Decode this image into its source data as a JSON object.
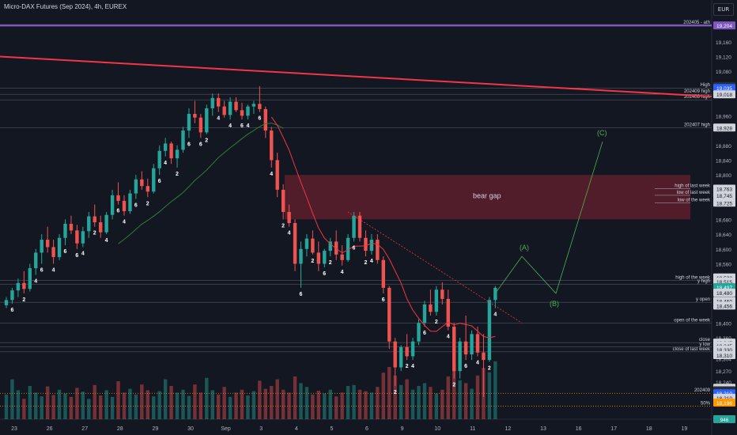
{
  "header": {
    "title": "Micro-DAX Futures (Sep 2024), 4h, EUREX",
    "currency": "EUR"
  },
  "colors": {
    "background": "#131722",
    "bull": "#26a69a",
    "bear": "#ef5350",
    "ath_line": "#7e57c2",
    "trendline": "#f23645",
    "bear_gap": "#5d1f2b",
    "projection": "#4caf50",
    "ma_fast": "#f23645",
    "ma_slow": "#2e7d32",
    "dotted_level": "#ff9800"
  },
  "price_axis": {
    "ticks": [
      "19,160",
      "19,120",
      "19,080",
      "18,960",
      "18,880",
      "18,840",
      "18,800",
      "18,680",
      "18,640",
      "18,600",
      "18,560",
      "18,400",
      "18,360",
      "18,304",
      "18,270",
      "18,240"
    ],
    "badges": [
      {
        "text": "19,204",
        "price": 19204,
        "color": "#7e57c2"
      },
      {
        "text": "High",
        "price": 19040,
        "color": "#2a2e39"
      },
      {
        "text": "19,035",
        "price": 19035,
        "color": "#2962ff"
      },
      {
        "text": "19,018",
        "price": 19018,
        "color": "#d1d4dc"
      },
      {
        "text": "18,928",
        "price": 18928,
        "color": "#d1d4dc"
      },
      {
        "text": "18,763",
        "price": 18763,
        "color": "#d1d4dc"
      },
      {
        "text": "18,745",
        "price": 18745,
        "color": "#d1d4dc"
      },
      {
        "text": "18,725",
        "price": 18725,
        "color": "#d1d4dc"
      },
      {
        "text": "18,523",
        "price": 18523,
        "color": "#d1d4dc"
      },
      {
        "text": "18,515",
        "price": 18512,
        "color": "#d1d4dc"
      },
      {
        "text": "18,497",
        "price": 18497,
        "color": "#26a69a"
      },
      {
        "text": "18,480",
        "price": 18482,
        "color": "#d1d4dc"
      },
      {
        "text": "18,460",
        "price": 18460,
        "color": "#d1d4dc"
      },
      {
        "text": "18,456",
        "price": 18447,
        "color": "#d1d4dc"
      },
      {
        "text": "18,347",
        "price": 18347,
        "color": "#d1d4dc"
      },
      {
        "text": "18,345",
        "price": 18339,
        "color": "#d1d4dc"
      },
      {
        "text": "18,330",
        "price": 18328,
        "color": "#d1d4dc"
      },
      {
        "text": "18,310",
        "price": 18313,
        "color": "#d1d4dc"
      },
      {
        "text": "18,225",
        "price": 18225,
        "color": "#d1d4dc"
      },
      {
        "text": "Low",
        "price": 18218,
        "color": "#2a2e39"
      },
      {
        "text": "18,210",
        "price": 18210,
        "color": "#2962ff"
      },
      {
        "text": "18,210",
        "price": 18198,
        "color": "#d1d4dc"
      },
      {
        "text": "18,196",
        "price": 18185,
        "color": "#ff9800"
      },
      {
        "text": "946",
        "price": 18140,
        "color": "#26a69a"
      }
    ]
  },
  "levels": [
    {
      "label": "202405 - ath",
      "price": 19204
    },
    {
      "label": "High",
      "price": 19035
    },
    {
      "label": "202409 high",
      "price": 19018
    },
    {
      "label": "202408 high",
      "price": 19003
    },
    {
      "label": "202407 high",
      "price": 18928
    },
    {
      "label": "high of last week",
      "price": 18763
    },
    {
      "label": "low of last week",
      "price": 18745
    },
    {
      "label": "low of the week",
      "price": 18725
    },
    {
      "label": "high of the week",
      "price": 18515
    },
    {
      "label": "y high",
      "price": 18505
    },
    {
      "label": "y open",
      "price": 18456
    },
    {
      "label": "open of the week",
      "price": 18400
    },
    {
      "label": "close",
      "price": 18347
    },
    {
      "label": "y low",
      "price": 18335
    },
    {
      "label": "close of last week",
      "price": 18322
    },
    {
      "label": "202409",
      "price": 18210
    },
    {
      "label": "50%",
      "price": 18175
    }
  ],
  "bear_gap_label": "bear gap",
  "projection_labels": [
    "(A)",
    "(B)",
    "(C)"
  ],
  "x_axis": [
    "23",
    "26",
    "27",
    "28",
    "29",
    "30",
    "Sep",
    "3",
    "4",
    "5",
    "6",
    "9",
    "10",
    "11",
    "12",
    "13",
    "16",
    "17",
    "18",
    "19"
  ],
  "wave_counts": [
    "6",
    "2",
    "4",
    "6",
    "4",
    "6",
    "6",
    "4",
    "2",
    "4",
    "6",
    "4",
    "6",
    "2",
    "6",
    "4",
    "2",
    "6",
    "6",
    "2",
    "4",
    "4",
    "6",
    "4",
    "6",
    "4",
    "2",
    "4",
    "6",
    "2",
    "6",
    "2",
    "4",
    "6",
    "2",
    "4",
    "6",
    "2",
    "2",
    "4",
    "6",
    "2",
    "4",
    "2",
    "6",
    "4",
    "2",
    "4"
  ],
  "chart_data": {
    "type": "candlestick",
    "title": "Micro-DAX Futures (Sep 2024), 4h, EUREX",
    "y_range": [
      18140,
      19230
    ],
    "candles_ohlc": [
      [
        18448,
        18470,
        18440,
        18462
      ],
      [
        18462,
        18495,
        18452,
        18488
      ],
      [
        18488,
        18520,
        18470,
        18508
      ],
      [
        18508,
        18540,
        18480,
        18492
      ],
      [
        18492,
        18560,
        18485,
        18548
      ],
      [
        18548,
        18600,
        18530,
        18590
      ],
      [
        18590,
        18640,
        18560,
        18625
      ],
      [
        18625,
        18660,
        18590,
        18605
      ],
      [
        18605,
        18625,
        18560,
        18578
      ],
      [
        18578,
        18640,
        18570,
        18630
      ],
      [
        18630,
        18680,
        18610,
        18668
      ],
      [
        18668,
        18690,
        18640,
        18650
      ],
      [
        18650,
        18665,
        18600,
        18615
      ],
      [
        18615,
        18660,
        18605,
        18648
      ],
      [
        18648,
        18700,
        18630,
        18688
      ],
      [
        18688,
        18720,
        18660,
        18672
      ],
      [
        18672,
        18690,
        18630,
        18645
      ],
      [
        18645,
        18700,
        18640,
        18692
      ],
      [
        18692,
        18760,
        18680,
        18745
      ],
      [
        18745,
        18780,
        18720,
        18730
      ],
      [
        18730,
        18745,
        18690,
        18702
      ],
      [
        18702,
        18760,
        18695,
        18750
      ],
      [
        18750,
        18800,
        18735,
        18788
      ],
      [
        18788,
        18810,
        18760,
        18770
      ],
      [
        18770,
        18790,
        18740,
        18755
      ],
      [
        18755,
        18830,
        18750,
        18818
      ],
      [
        18818,
        18880,
        18800,
        18865
      ],
      [
        18865,
        18900,
        18850,
        18885
      ],
      [
        18885,
        18890,
        18830,
        18845
      ],
      [
        18845,
        18880,
        18820,
        18868
      ],
      [
        18868,
        18930,
        18860,
        18920
      ],
      [
        18920,
        18980,
        18900,
        18965
      ],
      [
        18965,
        19000,
        18940,
        18955
      ],
      [
        18955,
        18965,
        18900,
        18915
      ],
      [
        18915,
        18990,
        18910,
        18980
      ],
      [
        18980,
        19020,
        18960,
        19008
      ],
      [
        19008,
        19020,
        18970,
        18985
      ],
      [
        18985,
        19000,
        18955,
        18962
      ],
      [
        18962,
        19010,
        18950,
        18998
      ],
      [
        18998,
        19010,
        18970,
        18975
      ],
      [
        18975,
        18995,
        18950,
        18960
      ],
      [
        18960,
        18990,
        18950,
        18985
      ],
      [
        18985,
        19000,
        18965,
        18992
      ],
      [
        18992,
        19040,
        18970,
        18978
      ],
      [
        18978,
        18985,
        18900,
        18920
      ],
      [
        18920,
        18930,
        18820,
        18840
      ],
      [
        18840,
        18860,
        18740,
        18760
      ],
      [
        18760,
        18775,
        18680,
        18700
      ],
      [
        18700,
        18720,
        18660,
        18670
      ],
      [
        18670,
        18680,
        18540,
        18560
      ],
      [
        18560,
        18620,
        18495,
        18600
      ],
      [
        18600,
        18640,
        18580,
        18628
      ],
      [
        18628,
        18650,
        18585,
        18590
      ],
      [
        18590,
        18620,
        18540,
        18560
      ],
      [
        18560,
        18600,
        18550,
        18595
      ],
      [
        18595,
        18630,
        18580,
        18620
      ],
      [
        18620,
        18650,
        18570,
        18585
      ],
      [
        18585,
        18610,
        18555,
        18570
      ],
      [
        18570,
        18640,
        18565,
        18630
      ],
      [
        18630,
        18700,
        18620,
        18690
      ],
      [
        18690,
        18700,
        18620,
        18630
      ],
      [
        18630,
        18650,
        18580,
        18595
      ],
      [
        18595,
        18640,
        18585,
        18625
      ],
      [
        18625,
        18640,
        18560,
        18570
      ],
      [
        18570,
        18580,
        18480,
        18495
      ],
      [
        18495,
        18500,
        18330,
        18350
      ],
      [
        18350,
        18360,
        18230,
        18280
      ],
      [
        18280,
        18340,
        18270,
        18335
      ],
      [
        18335,
        18370,
        18300,
        18310
      ],
      [
        18310,
        18360,
        18300,
        18350
      ],
      [
        18350,
        18410,
        18340,
        18400
      ],
      [
        18400,
        18460,
        18390,
        18450
      ],
      [
        18450,
        18490,
        18420,
        18430
      ],
      [
        18430,
        18500,
        18420,
        18490
      ],
      [
        18490,
        18510,
        18450,
        18465
      ],
      [
        18465,
        18490,
        18380,
        18390
      ],
      [
        18390,
        18400,
        18250,
        18270
      ],
      [
        18270,
        18360,
        18250,
        18350
      ],
      [
        18350,
        18420,
        18300,
        18315
      ],
      [
        18315,
        18380,
        18300,
        18370
      ],
      [
        18370,
        18390,
        18310,
        18320
      ],
      [
        18320,
        18370,
        18200,
        18300
      ],
      [
        18300,
        18470,
        18295,
        18462
      ],
      [
        18462,
        18500,
        18440,
        18495
      ]
    ],
    "volume": [
      520,
      840,
      610,
      430,
      700,
      560,
      480,
      690,
      510,
      620,
      540,
      470,
      660,
      580,
      430,
      720,
      500,
      610,
      470,
      800,
      560,
      640,
      520,
      730,
      610,
      480,
      590,
      840,
      700,
      560,
      620,
      490,
      730,
      560,
      870,
      610,
      520,
      680,
      470,
      560,
      620,
      500,
      590,
      810,
      640,
      700,
      840,
      620,
      560,
      900,
      760,
      680,
      520,
      600,
      540,
      620,
      480,
      560,
      700,
      720,
      620,
      590,
      560,
      680,
      980,
      1100,
      920,
      720,
      840,
      620,
      700,
      760,
      680,
      540,
      620,
      900,
      1150,
      820,
      760,
      640,
      920,
      1080,
      990,
      1220
    ],
    "overlays": [
      "resistance trendline",
      "bear gap zone 18,680–18,800",
      "projection (A) (B) (C) to 18,900"
    ]
  }
}
